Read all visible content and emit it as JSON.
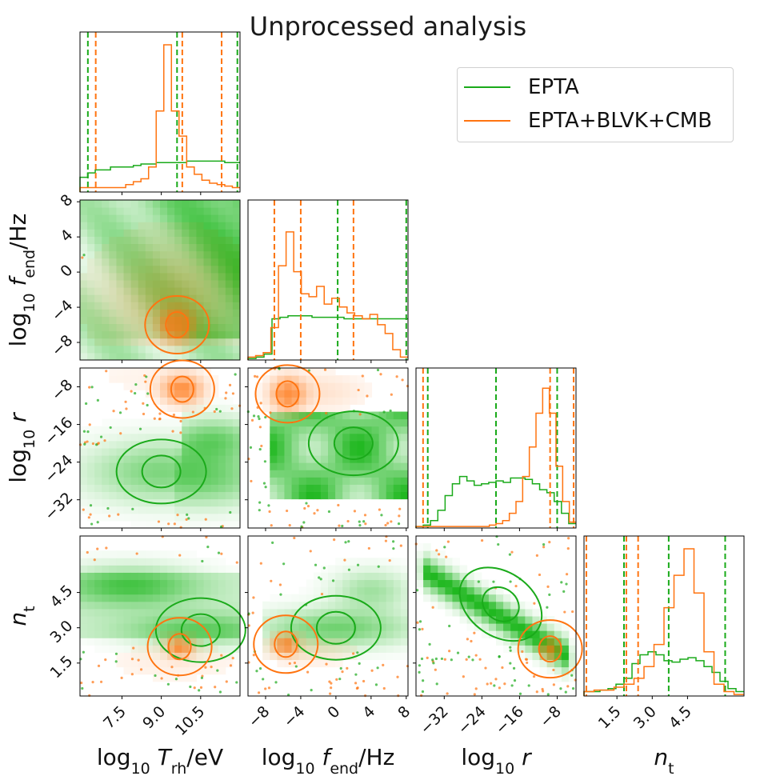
{
  "title": "Unprocessed analysis",
  "legend": [
    {
      "label": "EPTA",
      "color": "#1aaa1a"
    },
    {
      "label": "EPTA+BLVK+CMB",
      "color": "#ff7410"
    }
  ],
  "colors": {
    "EPTA": "#1aaa1a",
    "EPTA+BLVK+CMB": "#ff7410"
  },
  "parameters": [
    "log10 Trh/eV",
    "log10 fend/Hz",
    "log10 r",
    "nt"
  ],
  "axis_labels": {
    "x": [
      "log₁₀ Tᵣₕ/eV",
      "log₁₀ f_end/Hz",
      "log₁₀ r",
      "n_t"
    ],
    "y": [
      "log₁₀ f_end/Hz",
      "log₁₀ r",
      "n_t"
    ]
  },
  "chart_data": {
    "type": "corner",
    "title": "Unprocessed analysis",
    "series": [
      "EPTA",
      "EPTA+BLVK+CMB"
    ],
    "params": [
      {
        "name": "log10 Trh/eV",
        "range": [
          5.9,
          12.0
        ],
        "ticks": [
          7.5,
          9.0,
          10.5
        ]
      },
      {
        "name": "log10 fend/Hz",
        "range": [
          -10,
          8.2
        ],
        "ticks": [
          -8,
          -4,
          0,
          4,
          8
        ]
      },
      {
        "name": "log10 r",
        "range": [
          -38,
          -4
        ],
        "ticks": [
          -32,
          -24,
          -16,
          -8
        ]
      },
      {
        "name": "nt",
        "range": [
          0.1,
          6.9
        ],
        "ticks": [
          1.5,
          3.0,
          4.5
        ]
      }
    ],
    "tick_labels": {
      "x": [
        [
          "7.5",
          "9.0",
          "10.5"
        ],
        [
          "−8",
          "−4",
          "0",
          "4",
          "8"
        ],
        [
          "−32",
          "−24",
          "−16",
          "−8"
        ],
        [
          "1.5",
          "3.0",
          "4.5"
        ]
      ],
      "y": [
        [
          "−8",
          "−4",
          "0",
          "4",
          "8"
        ],
        [
          "−32",
          "−24",
          "−16",
          "−8"
        ],
        [
          "1.5",
          "3.0",
          "4.5"
        ]
      ]
    },
    "marginals": [
      {
        "param": "log10 Trh/eV",
        "EPTA": {
          "quantiles": [
            6.2,
            9.6,
            11.9
          ],
          "hist": [
            0.1,
            0.13,
            0.15,
            0.15,
            0.17,
            0.17,
            0.17,
            0.18,
            0.19,
            0.19,
            0.2,
            0.2,
            0.2,
            0.2,
            0.21,
            0.21,
            0.21,
            0.21,
            0.21,
            0.2,
            0.2
          ]
        },
        "EPTA+BLVK+CMB": {
          "quantiles": [
            6.5,
            9.8,
            11.3
          ],
          "hist": [
            0.03,
            0.03,
            0.03,
            0.03,
            0.03,
            0.03,
            0.05,
            0.07,
            0.09,
            0.17,
            0.55,
            1.0,
            0.55,
            0.38,
            0.17,
            0.12,
            0.08,
            0.06,
            0.05,
            0.04,
            0.03
          ]
        }
      },
      {
        "param": "log10 fend/Hz",
        "EPTA": {
          "quantiles": [
            -7.0,
            0.2,
            8.0
          ],
          "hist": [
            0.01,
            0.02,
            0.04,
            0.28,
            0.29,
            0.3,
            0.3,
            0.3,
            0.29,
            0.29,
            0.29,
            0.29,
            0.28,
            0.28,
            0.28,
            0.28,
            0.28,
            0.28,
            0.28,
            0.28
          ]
        },
        "EPTA+BLVK+CMB": {
          "quantiles": [
            -7.0,
            -4.0,
            2.0
          ],
          "hist": [
            0.02,
            0.03,
            0.05,
            0.22,
            0.64,
            0.87,
            0.6,
            0.45,
            0.43,
            0.5,
            0.38,
            0.42,
            0.36,
            0.32,
            0.3,
            0.28,
            0.31,
            0.24,
            0.18,
            0.07,
            0.02
          ]
        }
      },
      {
        "param": "log10 r",
        "EPTA": {
          "quantiles": [
            -35.5,
            -21.0,
            -8.0
          ],
          "hist": [
            0.01,
            0.02,
            0.05,
            0.12,
            0.22,
            0.3,
            0.35,
            0.32,
            0.29,
            0.3,
            0.31,
            0.32,
            0.31,
            0.34,
            0.34,
            0.33,
            0.3,
            0.26,
            0.24,
            0.18,
            0.1,
            0.03
          ]
        },
        "EPTA+BLVK+CMB": {
          "quantiles": [
            -36.5,
            -9.5,
            -4.5
          ],
          "hist": [
            0.01,
            0.01,
            0.01,
            0.01,
            0.01,
            0.01,
            0.01,
            0.01,
            0.01,
            0.01,
            0.01,
            0.02,
            0.03,
            0.05,
            0.1,
            0.18,
            0.35,
            0.55,
            0.78,
            0.95,
            0.78,
            0.42,
            0.18,
            0.04
          ]
        }
      },
      {
        "param": "nt",
        "EPTA": {
          "quantiles": [
            1.8,
            3.7,
            6.1
          ],
          "hist": [
            0.03,
            0.03,
            0.04,
            0.05,
            0.08,
            0.12,
            0.22,
            0.28,
            0.3,
            0.28,
            0.24,
            0.23,
            0.25,
            0.26,
            0.24,
            0.2,
            0.16,
            0.1,
            0.05,
            0.03
          ]
        },
        "EPTA+BLVK+CMB": {
          "quantiles": [
            0.2,
            1.9,
            2.4
          ],
          "hist": [
            0.03,
            0.04,
            0.04,
            0.06,
            0.08,
            0.12,
            0.2,
            0.35,
            0.6,
            0.82,
            1.0,
            0.7,
            0.3,
            0.08,
            0.03,
            0.01
          ]
        }
      }
    ],
    "joint": [
      {
        "x": "log10 Trh/eV",
        "y": "log10 fend/Hz",
        "EPTA": {
          "region": "x>6.3, y>-7.5"
        },
        "EPTA+BLVK+CMB": {
          "peak": [
            9.6,
            -6.0
          ],
          "region": "x 7.5-11.1, y -8.5-2"
        }
      },
      {
        "x": "log10 Trh/eV",
        "y": "log10 r",
        "EPTA": {
          "peak": [
            9.0,
            -26.0
          ]
        },
        "EPTA+BLVK+CMB": {
          "peak": [
            9.8,
            -8.5
          ]
        }
      },
      {
        "x": "log10 fend/Hz",
        "y": "log10 r",
        "EPTA": {
          "peak": [
            2.0,
            -20.0
          ]
        },
        "EPTA+BLVK+CMB": {
          "peak": [
            -5.5,
            -9.5
          ]
        }
      },
      {
        "x": "log10 Trh/eV",
        "y": "nt",
        "EPTA": {
          "peak": [
            10.5,
            2.9
          ]
        },
        "EPTA+BLVK+CMB": {
          "peak": [
            9.7,
            2.2
          ]
        }
      },
      {
        "x": "log10 fend/Hz",
        "y": "nt",
        "EPTA": {
          "peak": [
            0.0,
            3.0
          ]
        },
        "EPTA+BLVK+CMB": {
          "peak": [
            -5.7,
            2.3
          ]
        }
      },
      {
        "x": "log10 r",
        "y": "nt",
        "EPTA": {
          "peak": [
            -20.0,
            4.0
          ],
          "trend": "negative correlation"
        },
        "EPTA+BLVK+CMB": {
          "peak": [
            -9.5,
            2.1
          ]
        }
      }
    ]
  }
}
